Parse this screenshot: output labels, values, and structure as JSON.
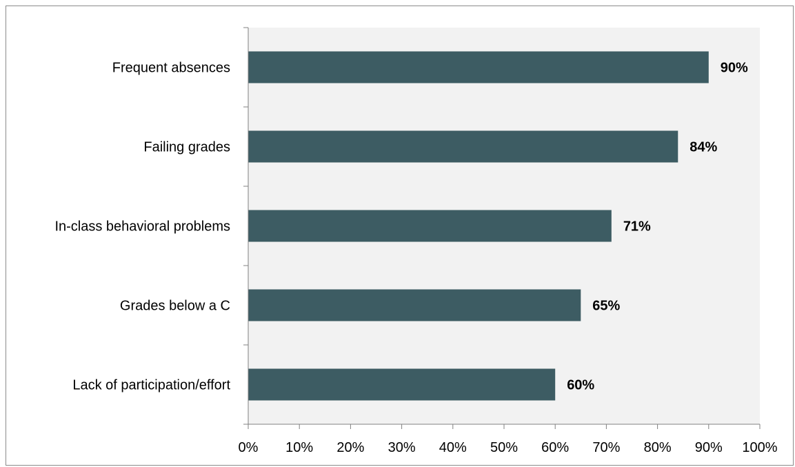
{
  "chart_data": {
    "type": "bar",
    "orientation": "horizontal",
    "categories": [
      "Frequent absences",
      "Failing grades",
      "In-class behavioral problems",
      "Grades below a C",
      "Lack of participation/effort"
    ],
    "values": [
      90,
      84,
      71,
      65,
      60
    ],
    "data_labels": [
      "90%",
      "84%",
      "71%",
      "65%",
      "60%"
    ],
    "title": "",
    "xlabel": "",
    "ylabel": "",
    "xlim": [
      0,
      100
    ],
    "x_ticks": [
      0,
      10,
      20,
      30,
      40,
      50,
      60,
      70,
      80,
      90,
      100
    ],
    "x_tick_labels": [
      "0%",
      "10%",
      "20%",
      "30%",
      "40%",
      "50%",
      "60%",
      "70%",
      "80%",
      "90%",
      "100%"
    ],
    "grid": false,
    "legend": "none",
    "colors": {
      "bar": "#3d5c63",
      "plot_background": "#f2f2f2",
      "axis": "#808080",
      "frame": "#8a8a8a"
    }
  }
}
